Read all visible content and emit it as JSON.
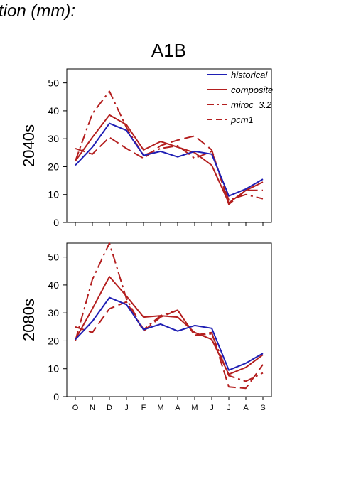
{
  "page_title": "tion (mm):",
  "scenario": "A1B",
  "colors": {
    "historical": "#1f1fb4",
    "models": "#b41f1f",
    "axis": "#000000"
  },
  "chart_data": [
    {
      "type": "line",
      "panel_label": "2040s",
      "categories": [
        "O",
        "N",
        "D",
        "J",
        "F",
        "M",
        "A",
        "M",
        "J",
        "J",
        "A",
        "S"
      ],
      "ylim": [
        0,
        55
      ],
      "yticks": [
        0,
        10,
        20,
        30,
        40,
        50
      ],
      "legend_position": "top-right",
      "series": [
        {
          "name": "historical",
          "style": "solid",
          "color": "#1f1fb4",
          "values": [
            20.5,
            27,
            35.5,
            33,
            24,
            25.5,
            23.5,
            25.5,
            24.5,
            9.5,
            12,
            15.5
          ]
        },
        {
          "name": "composite",
          "style": "solid",
          "color": "#b41f1f",
          "values": [
            22,
            30.5,
            38.5,
            35,
            26,
            29,
            27,
            25,
            20.5,
            7,
            11.5,
            14.5
          ]
        },
        {
          "name": "miroc_3.2",
          "style": "dashdot",
          "color": "#b41f1f",
          "values": [
            22,
            39,
            47,
            34,
            24,
            26.5,
            27.5,
            23,
            25.5,
            8,
            10,
            8.5
          ]
        },
        {
          "name": "pcm1",
          "style": "dashed",
          "color": "#b41f1f",
          "values": [
            26.5,
            24.5,
            30.5,
            26.5,
            23,
            27.5,
            29.5,
            31,
            26,
            6.5,
            11.5,
            11.5
          ]
        }
      ]
    },
    {
      "type": "line",
      "panel_label": "2080s",
      "categories": [
        "O",
        "N",
        "D",
        "J",
        "F",
        "M",
        "A",
        "M",
        "J",
        "J",
        "A",
        "S"
      ],
      "ylim": [
        0,
        55
      ],
      "yticks": [
        0,
        10,
        20,
        30,
        40,
        50
      ],
      "series": [
        {
          "name": "historical",
          "style": "solid",
          "color": "#1f1fb4",
          "values": [
            20.5,
            27,
            35.5,
            33,
            24,
            26,
            23.5,
            25.5,
            24.5,
            9.5,
            12,
            15.5
          ]
        },
        {
          "name": "composite",
          "style": "solid",
          "color": "#b41f1f",
          "values": [
            20.5,
            31.5,
            43,
            36,
            28.5,
            29,
            28.5,
            23,
            20.5,
            8,
            10.5,
            15
          ]
        },
        {
          "name": "miroc_3.2",
          "style": "dashdot",
          "color": "#b41f1f",
          "values": [
            20,
            42,
            55,
            35,
            24,
            29,
            31,
            22,
            22.5,
            7.5,
            5.5,
            8.5
          ]
        },
        {
          "name": "pcm1",
          "style": "dashed",
          "color": "#b41f1f",
          "values": [
            25,
            23,
            31.5,
            34,
            23.5,
            28.5,
            31,
            22,
            23,
            3.5,
            3,
            11.5
          ]
        }
      ]
    }
  ]
}
